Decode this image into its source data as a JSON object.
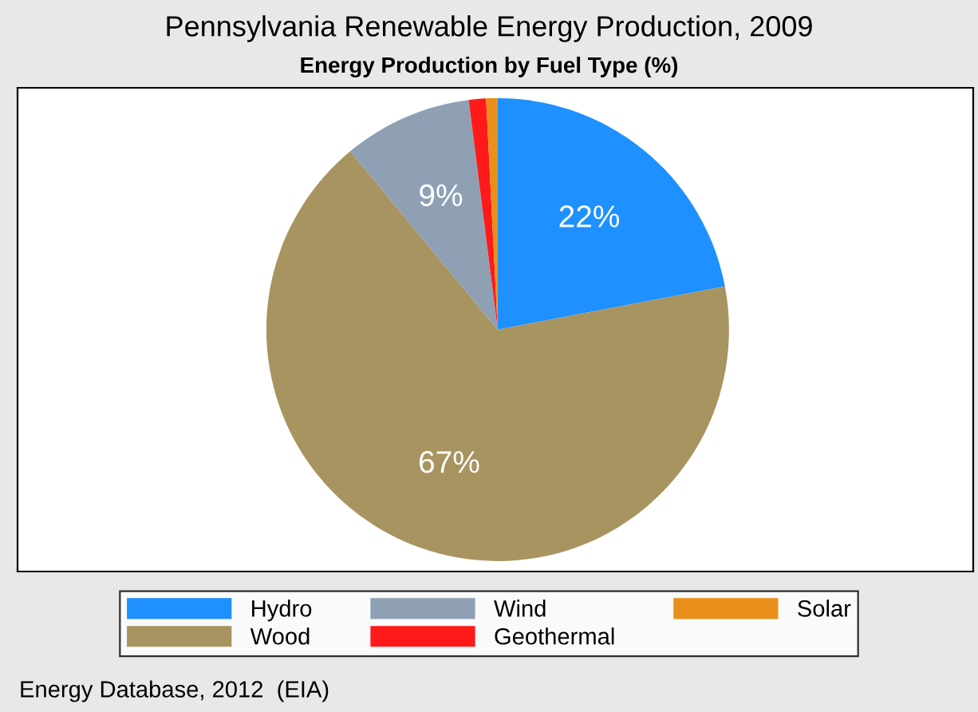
{
  "chart_data": {
    "type": "pie",
    "title": "Pennsylvania Renewable Energy Production, 2009",
    "subtitle": "Energy Production by Fuel Type (%)",
    "categories": [
      "Hydro",
      "Wood",
      "Wind",
      "Geothermal",
      "Solar"
    ],
    "values": [
      22,
      67,
      9,
      1.2,
      0.8
    ],
    "colors": [
      "#1e90ff",
      "#a89460",
      "#8fa0b4",
      "#ff1a1a",
      "#e8901a"
    ],
    "value_labels": [
      "22%",
      "67%",
      "9%",
      null,
      null
    ],
    "legend": "bottom",
    "annotations": [
      "Energy Database, 2012  (EIA)"
    ]
  }
}
